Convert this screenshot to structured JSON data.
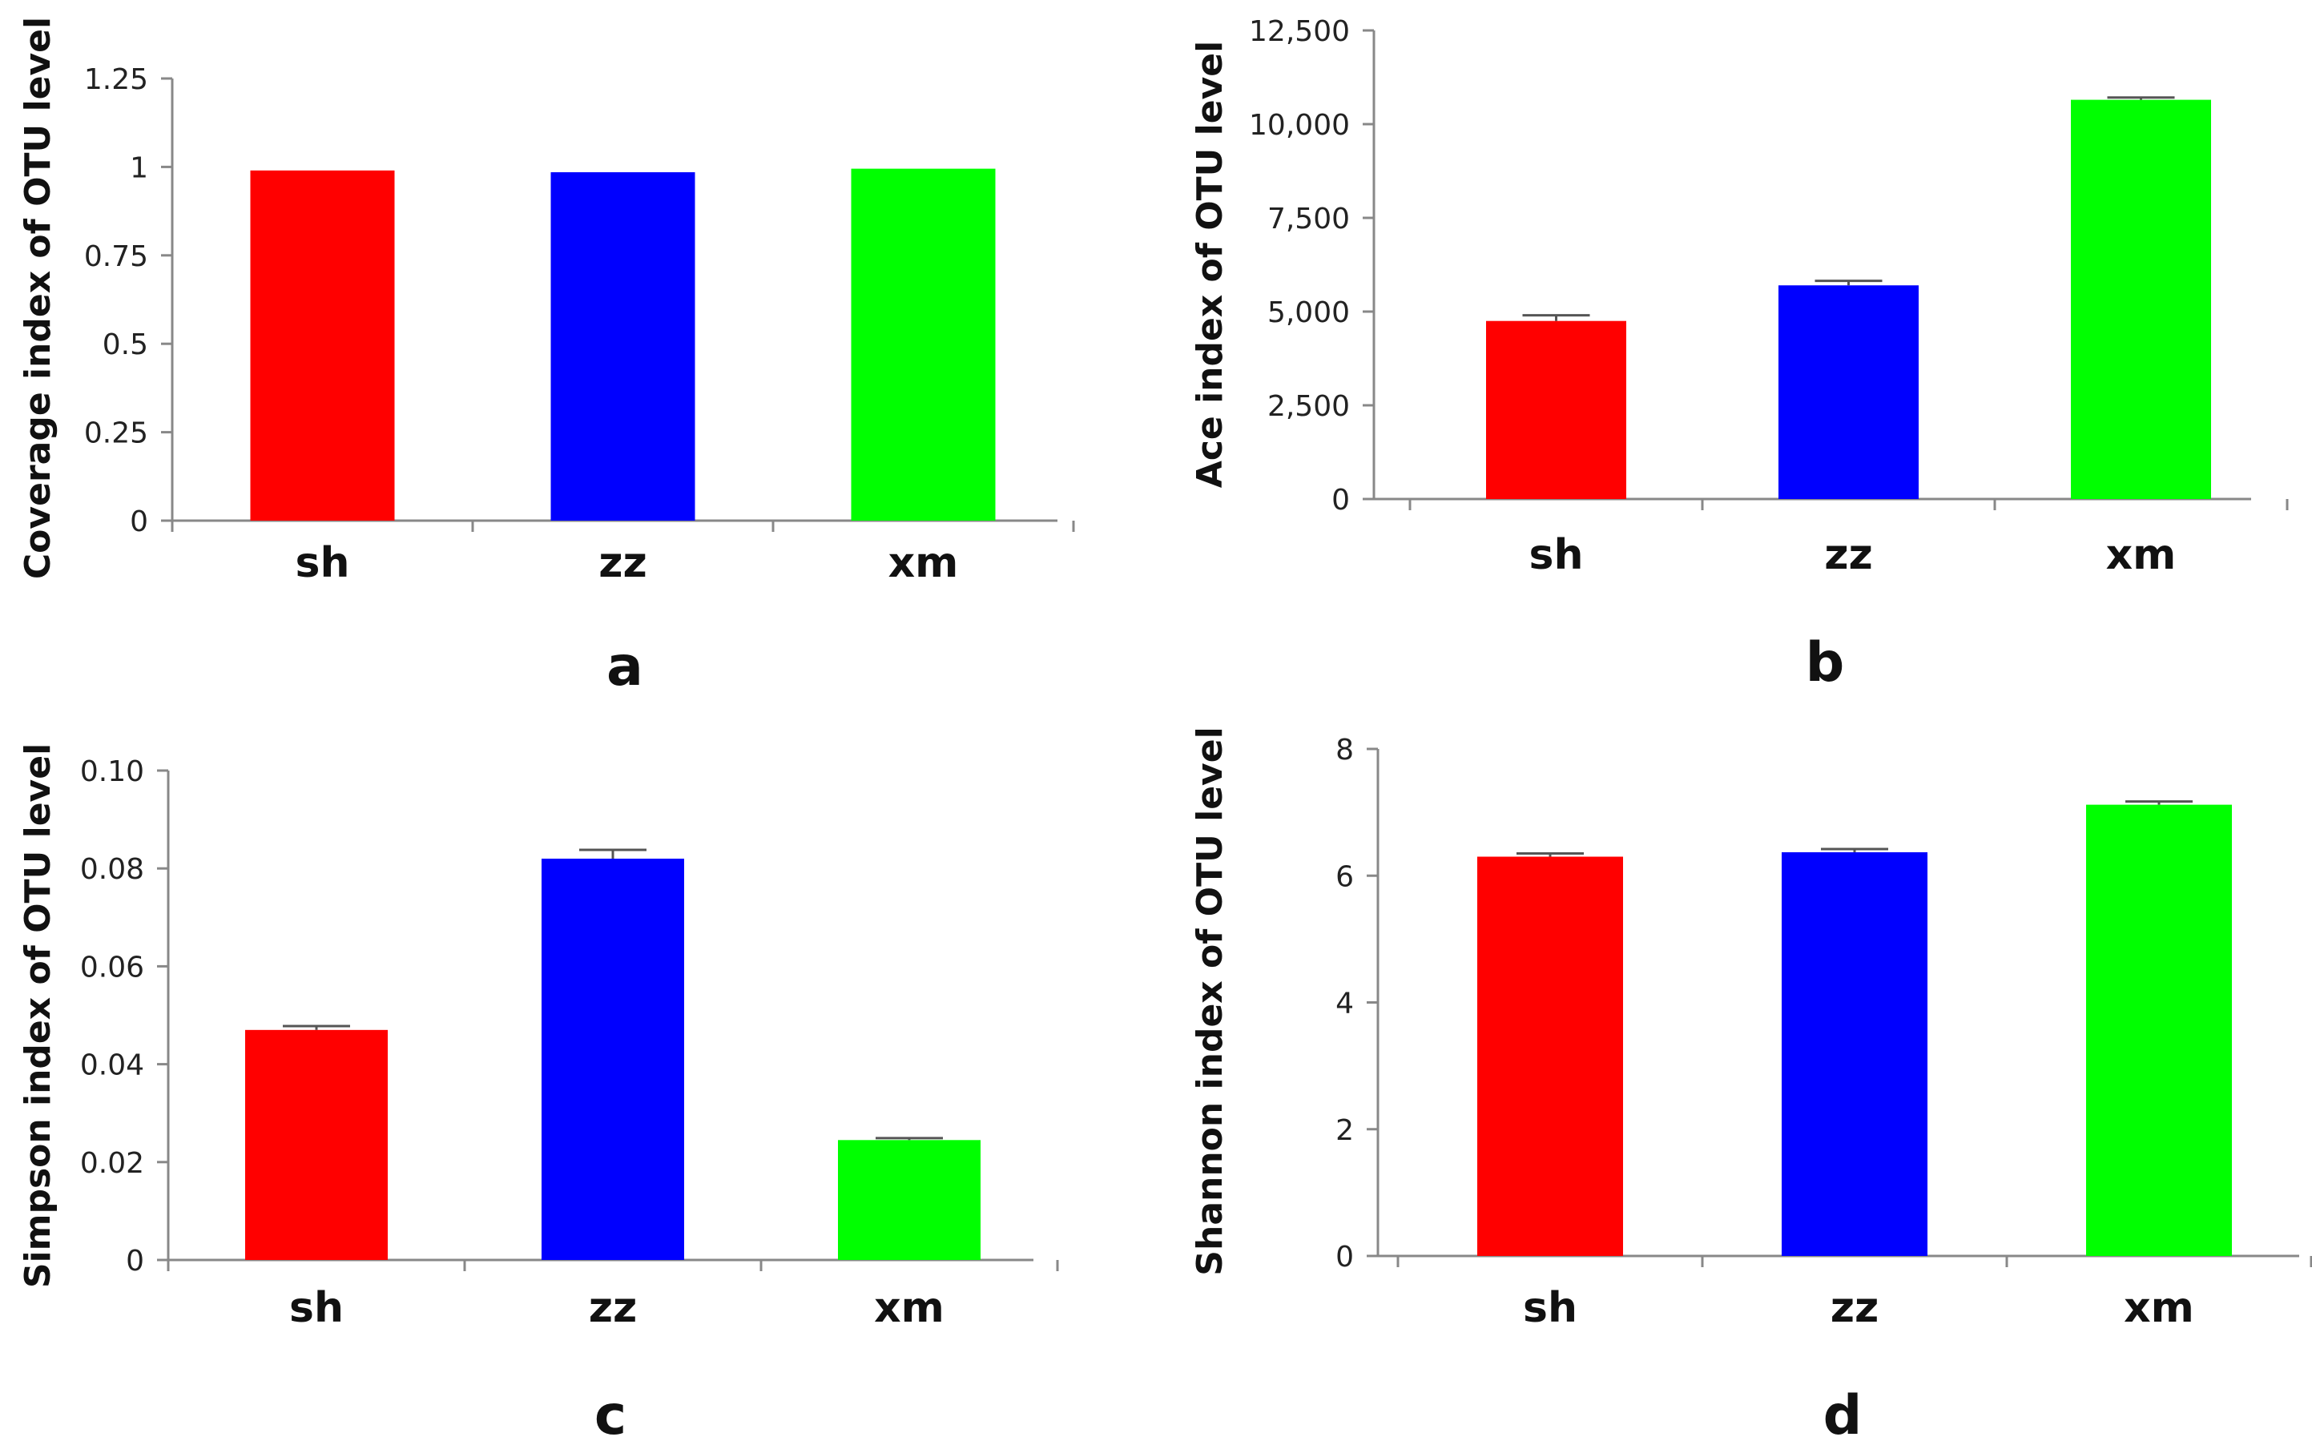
{
  "chart_data": [
    {
      "panel": "a",
      "type": "bar",
      "categories": [
        "sh",
        "zz",
        "xm"
      ],
      "values": [
        0.99,
        0.985,
        0.995
      ],
      "errors": [
        0,
        0,
        0
      ],
      "colors": [
        "#ff0000",
        "#0000ff",
        "#00ff00"
      ],
      "ylabel": "Coverage index of OTU level",
      "ylim": [
        0,
        1.25
      ],
      "yticks": [
        0,
        0.25,
        0.5,
        0.75,
        1,
        1.25
      ],
      "ytick_labels": [
        "0",
        "0.25",
        "0.5",
        "0.75",
        "1",
        "1.25"
      ]
    },
    {
      "panel": "b",
      "type": "bar",
      "categories": [
        "sh",
        "zz",
        "xm"
      ],
      "values": [
        4750,
        5700,
        10650
      ],
      "errors": [
        150,
        120,
        60
      ],
      "colors": [
        "#ff0000",
        "#0000ff",
        "#00ff00"
      ],
      "ylabel": "Ace index of OTU level",
      "ylim": [
        0,
        12500
      ],
      "yticks": [
        0,
        2500,
        5000,
        7500,
        10000,
        12500
      ],
      "ytick_labels": [
        "0",
        "2,500",
        "5,000",
        "7,500",
        "10,000",
        "12,500"
      ]
    },
    {
      "panel": "c",
      "type": "bar",
      "categories": [
        "sh",
        "zz",
        "xm"
      ],
      "values": [
        0.047,
        0.082,
        0.0245
      ],
      "errors": [
        0.0008,
        0.0018,
        0.0004
      ],
      "colors": [
        "#ff0000",
        "#0000ff",
        "#00ff00"
      ],
      "ylabel": "Simpson index of OTU level",
      "ylim": [
        0,
        0.1
      ],
      "yticks": [
        0,
        0.02,
        0.04,
        0.06,
        0.08,
        0.1
      ],
      "ytick_labels": [
        "0",
        "0.02",
        "0.04",
        "0.06",
        "0.08",
        "0.10"
      ]
    },
    {
      "panel": "d",
      "type": "bar",
      "categories": [
        "sh",
        "zz",
        "xm"
      ],
      "values": [
        6.3,
        6.37,
        7.12
      ],
      "errors": [
        0.05,
        0.05,
        0.05
      ],
      "colors": [
        "#ff0000",
        "#0000ff",
        "#00ff00"
      ],
      "ylabel": "Shannon index of OTU level",
      "ylim": [
        0,
        8
      ],
      "yticks": [
        0,
        2,
        4,
        6,
        8
      ],
      "ytick_labels": [
        "0",
        "2",
        "4",
        "6",
        "8"
      ]
    }
  ]
}
